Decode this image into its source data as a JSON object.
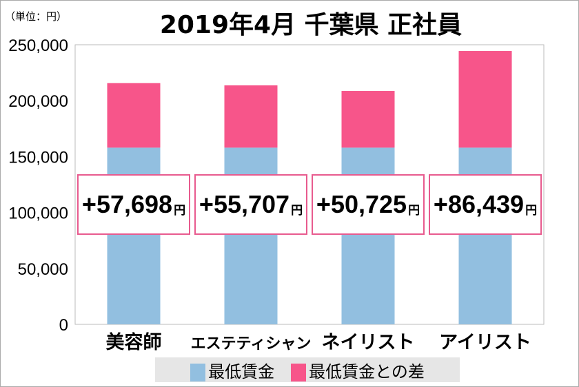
{
  "title": "2019年4月 千葉県 正社員",
  "unit_label": "（単位：円）",
  "chart_data": {
    "type": "bar",
    "stacked": true,
    "categories": [
      "美容師",
      "エステティシャン",
      "ネイリスト",
      "アイリスト"
    ],
    "series": [
      {
        "name": "最低賃金",
        "color": "#92bfe0",
        "values": [
          158000,
          158000,
          158000,
          158000
        ]
      },
      {
        "name": "最低賃金との差",
        "color": "#f7558a",
        "values": [
          57698,
          55707,
          50725,
          86439
        ]
      }
    ],
    "data_labels": [
      "+57,698",
      "+55,707",
      "+50,725",
      "+86,439"
    ],
    "data_label_unit": "円",
    "ylim": [
      0,
      250000
    ],
    "yticks": [
      "0",
      "50,000",
      "100,000",
      "150,000",
      "200,000",
      "250,000"
    ],
    "grid": false,
    "legend": "bottom"
  }
}
